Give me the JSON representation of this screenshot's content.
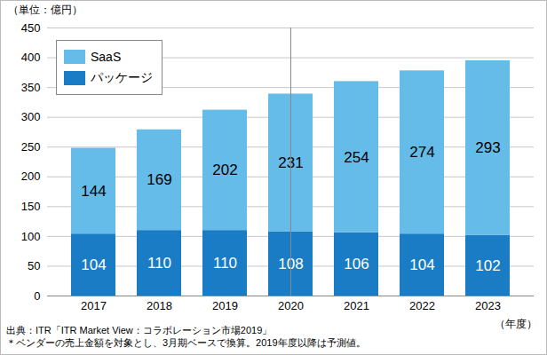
{
  "chart_data": {
    "type": "bar",
    "stacked": true,
    "y_label": "（単位：億円）",
    "x_label": "（年度）",
    "categories": [
      "2017",
      "2018",
      "2019",
      "2020",
      "2021",
      "2022",
      "2023"
    ],
    "series": [
      {
        "name": "SaaS",
        "color": "#66bce8",
        "values": [
          144,
          169,
          202,
          231,
          254,
          274,
          293
        ]
      },
      {
        "name": "パッケージ",
        "color": "#1a7cc4",
        "values": [
          104,
          110,
          110,
          108,
          106,
          104,
          102
        ]
      }
    ],
    "ylim": [
      0,
      450
    ],
    "yticks": [
      0,
      50,
      100,
      150,
      200,
      250,
      300,
      350,
      400,
      450
    ],
    "grid": true,
    "legend": "top-left",
    "data_labels": true,
    "annotations": [
      "出典：ITR「ITR Market View：コラボレーション市場2019」",
      "＊ベンダーの売上金額を対象とし、3月期ベースで換算。2019年度以降は予測値。"
    ]
  }
}
